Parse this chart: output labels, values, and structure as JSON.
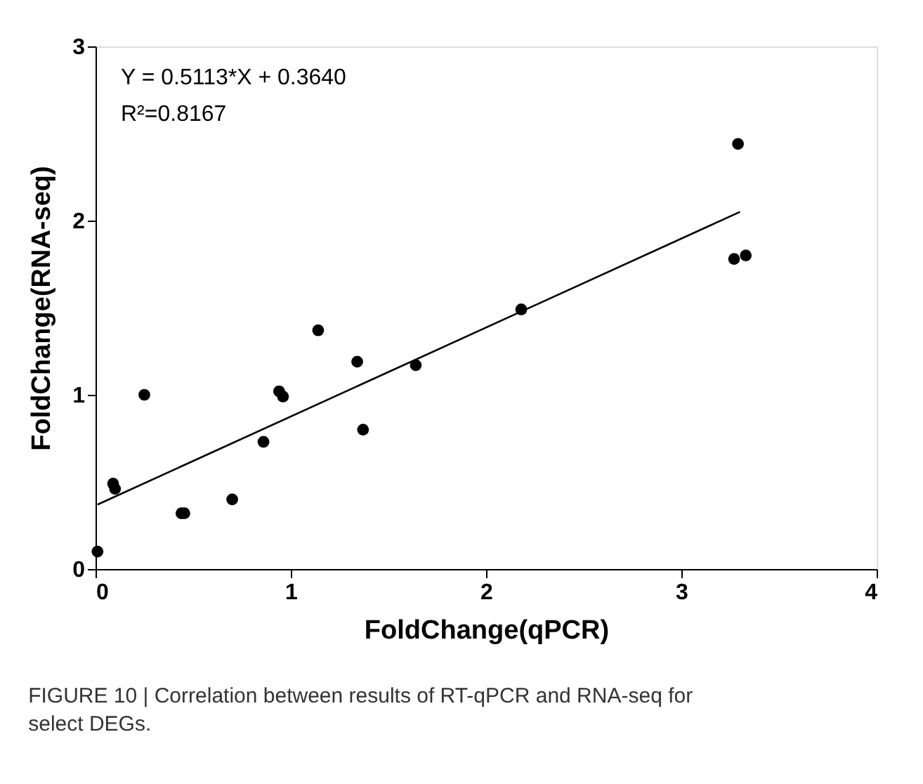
{
  "chart_data": {
    "type": "scatter",
    "xlabel": "FoldChange(qPCR)",
    "ylabel": "FoldChange(RNA-seq)",
    "xlim": [
      0,
      4
    ],
    "ylim": [
      0,
      3
    ],
    "xticks": [
      0,
      1,
      2,
      3,
      4
    ],
    "yticks": [
      0,
      1,
      2,
      3
    ],
    "grid": false,
    "series": [
      {
        "color": "#000000",
        "marker": "circle",
        "x": [
          0.01,
          0.09,
          0.1,
          0.25,
          0.44,
          0.455,
          0.7,
          0.86,
          0.94,
          0.96,
          1.14,
          1.34,
          1.37,
          1.64,
          2.18,
          3.27,
          3.29,
          3.33
        ],
        "values": [
          0.1,
          0.49,
          0.46,
          1.0,
          0.32,
          0.32,
          0.4,
          0.73,
          1.02,
          0.99,
          1.37,
          1.19,
          0.8,
          1.17,
          1.49,
          1.78,
          2.44,
          1.8
        ]
      },
      {
        "type": "line",
        "color": "#000000",
        "line_style": "solid",
        "x": [
          0.01,
          3.3
        ],
        "values": [
          0.37,
          2.05
        ]
      }
    ],
    "annotations": [
      "Y = 0.5113*X + 0.3640",
      "R²=0.8167",
      "FIGURE 10 | Correlation between results of RT-qPCR and RNA-seq for select DEGs."
    ]
  }
}
